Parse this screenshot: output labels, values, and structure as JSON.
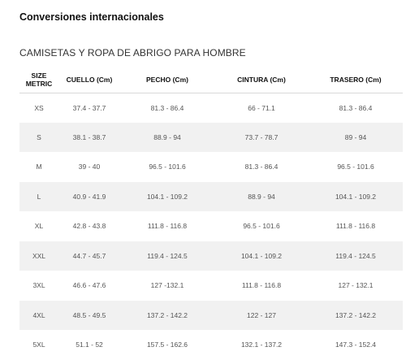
{
  "page": {
    "title": "Conversiones internacionales",
    "section_title": "CAMISETAS Y ROPA DE ABRIGO PARA HOMBRE"
  },
  "table": {
    "headers": {
      "size_line1": "SIZE",
      "size_line2": "METRIC",
      "neck": "CUELLO (Cm)",
      "chest": "PECHO (Cm)",
      "waist": "CINTURA (Cm)",
      "hip": "TRASERO (Cm)"
    },
    "rows": [
      {
        "size": "XS",
        "neck": "37.4 - 37.7",
        "chest": "81.3 - 86.4",
        "waist": "66 - 71.1",
        "hip": "81.3 - 86.4"
      },
      {
        "size": "S",
        "neck": "38.1 - 38.7",
        "chest": "88.9 - 94",
        "waist": "73.7 - 78.7",
        "hip": "89 - 94"
      },
      {
        "size": "M",
        "neck": "39 - 40",
        "chest": "96.5 - 101.6",
        "waist": "81.3 - 86.4",
        "hip": "96.5 - 101.6"
      },
      {
        "size": "L",
        "neck": "40.9 - 41.9",
        "chest": "104.1 - 109.2",
        "waist": "88.9 - 94",
        "hip": "104.1 - 109.2"
      },
      {
        "size": "XL",
        "neck": "42.8 - 43.8",
        "chest": "111.8 - 116.8",
        "waist": "96.5 - 101.6",
        "hip": "111.8 - 116.8"
      },
      {
        "size": "XXL",
        "neck": "44.7 - 45.7",
        "chest": "119.4 - 124.5",
        "waist": "104.1 - 109.2",
        "hip": "119.4 - 124.5"
      },
      {
        "size": "3XL",
        "neck": "46.6 - 47.6",
        "chest": "127 -132.1",
        "waist": "111.8 - 116.8",
        "hip": "127 - 132.1"
      },
      {
        "size": "4XL",
        "neck": "48.5 - 49.5",
        "chest": "137.2 - 142.2",
        "waist": "122 - 127",
        "hip": "137.2 - 142.2"
      },
      {
        "size": "5XL",
        "neck": "51.1 - 52",
        "chest": "157.5 - 162.6",
        "waist": "132.1 - 137.2",
        "hip": "147.3 - 152.4"
      }
    ]
  },
  "colors": {
    "shaded_row": "#f1f1f1",
    "header_text": "#111111",
    "body_text": "#555555"
  }
}
